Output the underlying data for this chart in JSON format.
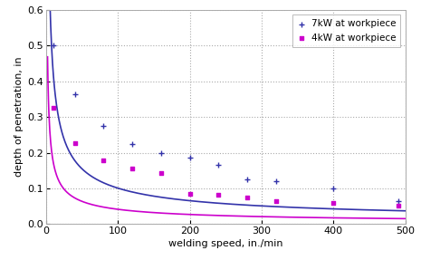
{
  "xlabel": "welding speed, in./min",
  "ylabel": "depth of penetration, in",
  "xlim": [
    0,
    500
  ],
  "ylim": [
    0,
    0.6
  ],
  "xticks": [
    0,
    100,
    200,
    300,
    400,
    500
  ],
  "yticks": [
    0,
    0.1,
    0.2,
    0.3,
    0.4,
    0.5,
    0.6
  ],
  "series_7kW": {
    "label": "7kW at workpiece",
    "line_color": "#3333aa",
    "marker_color": "#3333aa",
    "scatter_x": [
      10,
      40,
      80,
      120,
      160,
      200,
      240,
      280,
      320,
      400,
      490
    ],
    "scatter_y": [
      0.5,
      0.365,
      0.275,
      0.225,
      0.2,
      0.185,
      0.165,
      0.125,
      0.12,
      0.1,
      0.065
    ],
    "fit_a": 1.75,
    "fit_b": -0.62
  },
  "series_4kW": {
    "label": "4kW at workpiece",
    "line_color": "#cc00cc",
    "marker_color": "#cc00cc",
    "scatter_x": [
      10,
      40,
      80,
      120,
      160,
      200,
      240,
      280,
      320,
      400,
      490
    ],
    "scatter_y": [
      0.325,
      0.228,
      0.178,
      0.155,
      0.143,
      0.085,
      0.082,
      0.075,
      0.065,
      0.06,
      0.052
    ],
    "fit_a": 0.72,
    "fit_b": -0.62
  },
  "background_color": "#ffffff",
  "plot_bg_color": "#ffffff",
  "grid_color": "#aaaaaa",
  "border_color": "#aaaaaa",
  "legend_fontsize": 7.5,
  "axis_fontsize": 8,
  "tick_fontsize": 8
}
